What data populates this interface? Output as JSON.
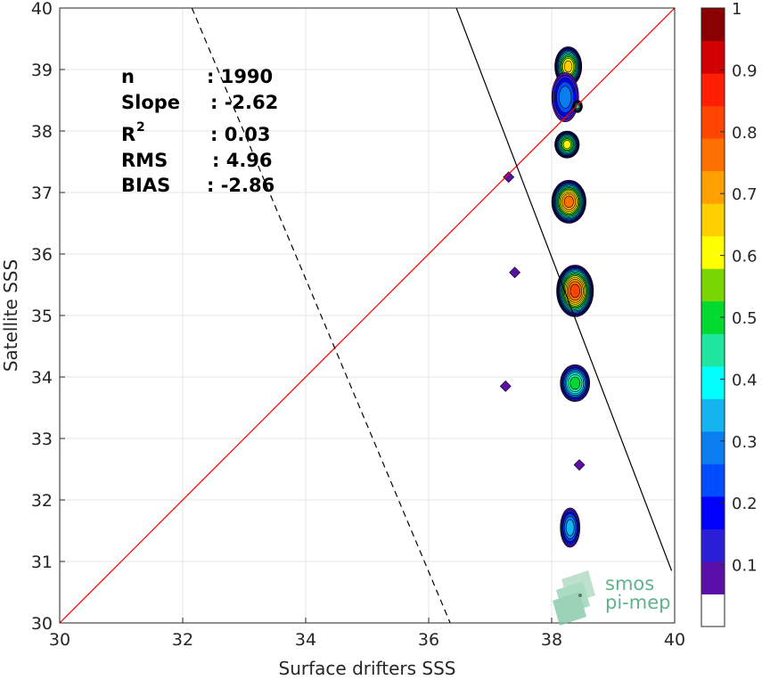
{
  "chart_data": {
    "type": "heatmap",
    "subtype": "density-contour scatter comparison",
    "xlabel": "Surface drifters SSS",
    "ylabel": "Satellite SSS",
    "xlim": [
      30,
      40
    ],
    "ylim": [
      30,
      40
    ],
    "x_ticks": [
      "30",
      "32",
      "34",
      "36",
      "38",
      "40"
    ],
    "y_ticks": [
      "30",
      "31",
      "32",
      "33",
      "34",
      "35",
      "36",
      "37",
      "38",
      "39",
      "40"
    ],
    "grid": true,
    "stats": {
      "lines": [
        {
          "key": "n",
          "value": ": 1990"
        },
        {
          "key": "Slope",
          "value": ": -2.62"
        },
        {
          "key": "R",
          "sup": "2",
          "value": ": 0.03"
        },
        {
          "key": "RMS",
          "value": ": 4.96"
        },
        {
          "key": "BIAS",
          "value": ": -2.86"
        }
      ]
    },
    "reference_lines": [
      {
        "type": "identity",
        "style": "solid",
        "color": "#ff0000",
        "points": [
          [
            30,
            30
          ],
          [
            40,
            40
          ]
        ]
      },
      {
        "type": "fit",
        "style": "solid",
        "color": "#000000",
        "points": [
          [
            36.45,
            40
          ],
          [
            39.95,
            30.85
          ]
        ]
      },
      {
        "type": "fit",
        "style": "dashed",
        "color": "#000000",
        "points": [
          [
            32.15,
            40
          ],
          [
            36.35,
            30
          ]
        ]
      }
    ],
    "density_clusters": [
      {
        "x": 38.27,
        "y": 39.05,
        "rx": 0.22,
        "ry": 0.32,
        "peak": 0.65
      },
      {
        "x": 38.22,
        "y": 38.55,
        "rx": 0.22,
        "ry": 0.4,
        "peak": 0.25
      },
      {
        "x": 38.25,
        "y": 37.78,
        "rx": 0.2,
        "ry": 0.22,
        "peak": 0.6
      },
      {
        "x": 38.28,
        "y": 36.85,
        "rx": 0.28,
        "ry": 0.35,
        "peak": 0.75
      },
      {
        "x": 38.38,
        "y": 35.4,
        "rx": 0.3,
        "ry": 0.42,
        "peak": 0.85
      },
      {
        "x": 38.38,
        "y": 33.9,
        "rx": 0.24,
        "ry": 0.3,
        "peak": 0.48
      },
      {
        "x": 38.3,
        "y": 31.55,
        "rx": 0.16,
        "ry": 0.32,
        "peak": 0.35
      },
      {
        "x": 38.42,
        "y": 38.4,
        "rx": 0.08,
        "ry": 0.1,
        "peak": 0.45
      }
    ],
    "outliers": [
      [
        37.25,
        33.85
      ],
      [
        38.45,
        32.57
      ],
      [
        37.3,
        37.25
      ],
      [
        37.4,
        35.7
      ]
    ],
    "colorbar": {
      "ticks": [
        "0.1",
        "0.2",
        "0.3",
        "0.4",
        "0.5",
        "0.6",
        "0.7",
        "0.8",
        "0.9",
        "1"
      ],
      "colors": [
        "#ffffff",
        "#5a0fa8",
        "#2b1ed8",
        "#0000ff",
        "#004cff",
        "#0a7ef0",
        "#14b4f0",
        "#00ffff",
        "#1fe6a0",
        "#00d92e",
        "#7ad600",
        "#ffff00",
        "#ffd000",
        "#ffa000",
        "#ff7000",
        "#ff4500",
        "#ff1e00",
        "#d20000",
        "#8b0000"
      ]
    }
  },
  "watermark": {
    "line1": "smos",
    "line2": "pi-mep"
  }
}
